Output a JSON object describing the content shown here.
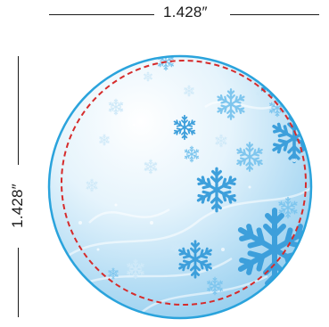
{
  "dimensions": {
    "width_label": "1.428″",
    "height_label": "1.428″"
  },
  "colors": {
    "outline": "#2aa3dc",
    "safe_line": "#d62b2b",
    "background_top": "#ffffff",
    "background_bottom": "#9fd2f0",
    "snowflake_primary": "#3d9fdb",
    "snowflake_light": "#7fc6ee",
    "snowflake_pale": "#cfe9f8"
  },
  "artwork": {
    "theme": "snowflake-pattern",
    "shape": "circle",
    "safe_line_style": "dashed"
  }
}
